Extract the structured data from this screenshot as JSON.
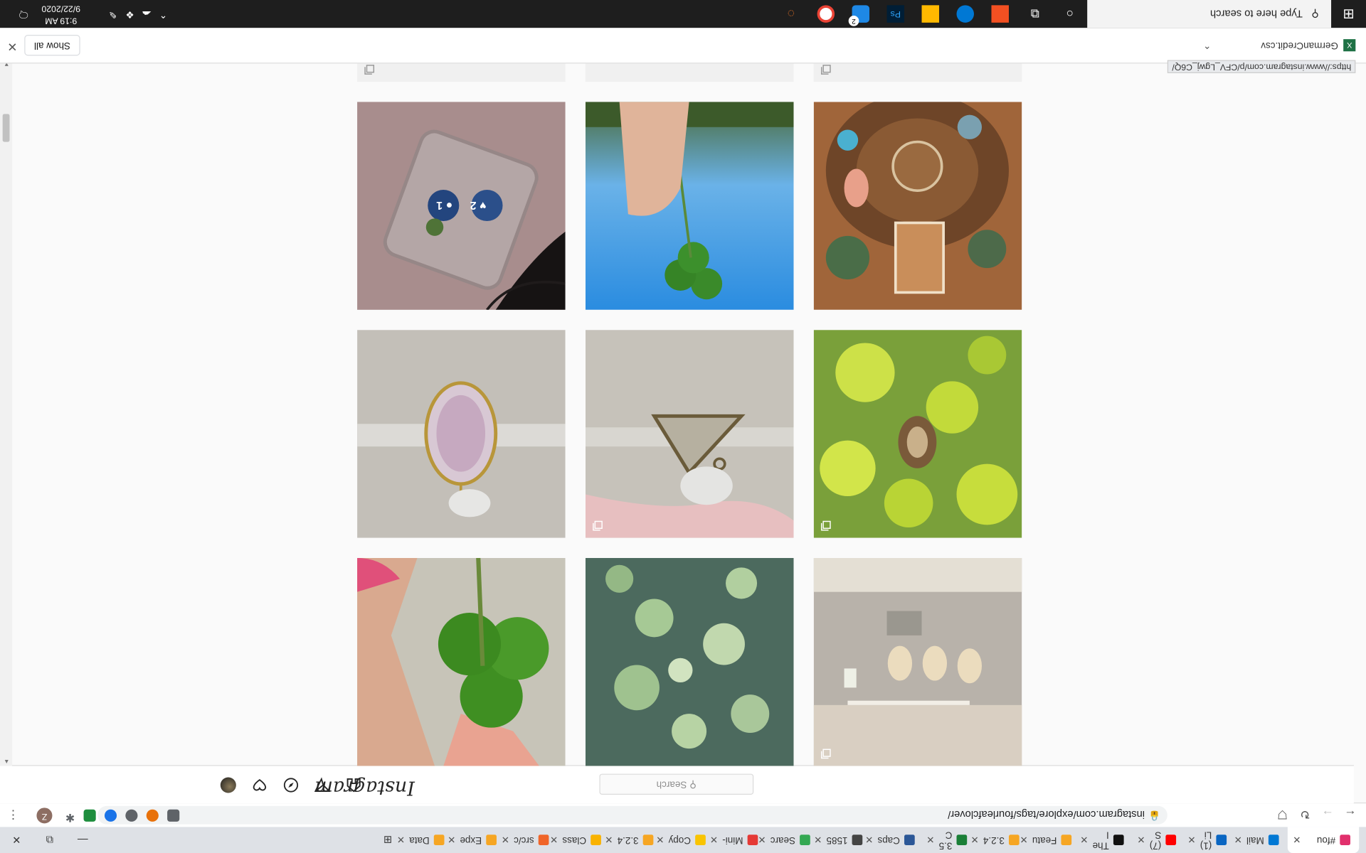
{
  "browser": {
    "tabs": [
      {
        "title": "#fou",
        "color": "#e1306c",
        "active": true
      },
      {
        "title": "Mail",
        "color": "#0078d4"
      },
      {
        "title": "(1) Li",
        "color": "#0a66c2"
      },
      {
        "title": "(7) S",
        "color": "#ff0000"
      },
      {
        "title": "The I",
        "color": "#111111"
      },
      {
        "title": "Featu",
        "color": "#f6a623"
      },
      {
        "title": "3.2.4",
        "color": "#f6a623"
      },
      {
        "title": "3.5 C",
        "color": "#1a7f37"
      },
      {
        "title": "Caps",
        "color": "#2b5797"
      },
      {
        "title": "1585",
        "color": "#444444"
      },
      {
        "title": "Searc",
        "color": "#34a853"
      },
      {
        "title": "Mini-",
        "color": "#e53935"
      },
      {
        "title": "Copy",
        "color": "#f9c400"
      },
      {
        "title": "3.2.4",
        "color": "#f6a623"
      },
      {
        "title": "Class",
        "color": "#f9b200"
      },
      {
        "title": "src/c",
        "color": "#f06529"
      },
      {
        "title": "Expe",
        "color": "#f6a623"
      },
      {
        "title": "Data",
        "color": "#f6a623"
      }
    ],
    "url": "instagram.com/explore/tags/fourleafclover/",
    "profile_initial": "Z"
  },
  "instagram": {
    "logo_text": "Instagram",
    "search_placeholder": "Search",
    "hover_likes": "2",
    "hover_comments": "1"
  },
  "download": {
    "file_name": "GermanCredit.csv",
    "show_all_label": "Show all",
    "hover_url": "https://www.instagram.com/p/CFV_Lgwj_C6Q/"
  },
  "taskbar": {
    "search_placeholder": "Type here to search",
    "time": "9:19 AM",
    "date": "9/22/2020",
    "notification_count": "2"
  }
}
